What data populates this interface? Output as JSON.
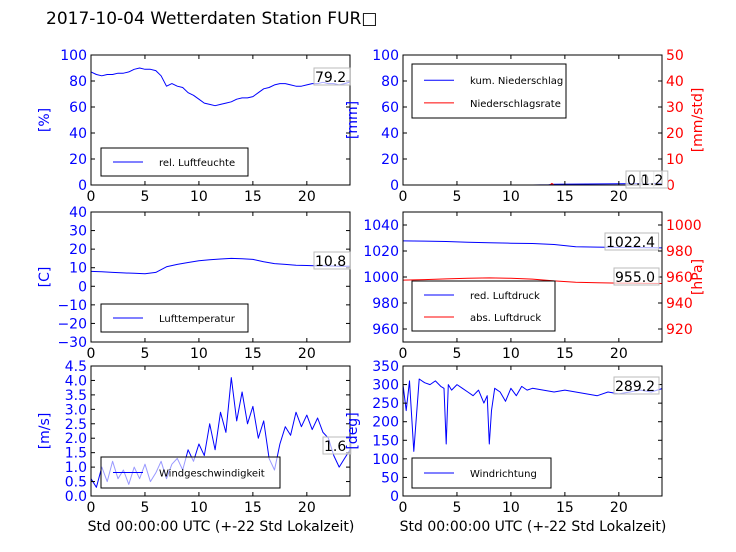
{
  "figure": {
    "title": "2017-10-04 Wetterdaten Station FUR□",
    "xlabel": "Std 00:00:00 UTC (+-22 Std Lokalzeit)",
    "colors": {
      "primary": "#0000ff",
      "secondary": "#ff0000",
      "legend_line": "#0000ff"
    }
  },
  "chart_data": [
    {
      "id": "humidity",
      "type": "line",
      "ylabel": "[%]",
      "ylim": [
        0,
        100
      ],
      "yticks": [
        0,
        20,
        40,
        60,
        80,
        100
      ],
      "xlim": [
        0,
        24
      ],
      "xticks": [
        0,
        5,
        10,
        15,
        20
      ],
      "value_label": "79.2",
      "legend_position": "lower-left",
      "series": [
        {
          "name": "rel. Luftfeuchte",
          "color": "#0000ff",
          "x": [
            0,
            0.5,
            1,
            1.5,
            2,
            2.5,
            3,
            3.5,
            4,
            4.5,
            5,
            5.5,
            6,
            6.5,
            7,
            7.5,
            8,
            8.5,
            9,
            9.5,
            10,
            10.5,
            11,
            11.5,
            12,
            12.5,
            13,
            13.5,
            14,
            14.5,
            15,
            15.5,
            16,
            16.5,
            17,
            17.5,
            18,
            18.5,
            19,
            19.5,
            20,
            20.5,
            21,
            21.5,
            22,
            22.5,
            23,
            23.5,
            24
          ],
          "y": [
            87,
            85,
            84,
            85,
            85,
            86,
            86,
            87,
            89,
            90,
            89,
            89,
            88,
            84,
            76,
            78,
            76,
            75,
            71,
            69,
            66,
            63,
            62,
            61,
            62,
            63,
            64,
            66,
            67,
            67,
            68,
            71,
            74,
            75,
            77,
            78,
            78,
            77,
            76,
            76,
            77,
            78,
            78,
            79,
            78,
            78,
            77,
            78,
            79.2
          ]
        }
      ]
    },
    {
      "id": "precipitation",
      "type": "line",
      "ylabel": "[mm]",
      "ylim": [
        0,
        100
      ],
      "yticks": [
        0,
        20,
        40,
        60,
        80,
        100
      ],
      "ylabel2": "[mm/std]",
      "ylim2": [
        0,
        50
      ],
      "yticks2": [
        0,
        10,
        20,
        30,
        40,
        50
      ],
      "xlim": [
        0,
        24
      ],
      "xticks": [
        0,
        5,
        10,
        15,
        20
      ],
      "value_labels": [
        "0.0",
        "1.2"
      ],
      "legend_position": "upper-left",
      "series": [
        {
          "name": "kum. Niederschlag",
          "color": "#0000ff",
          "axis": "left",
          "x": [
            0,
            12,
            13.5,
            14,
            24
          ],
          "y": [
            0,
            0,
            0.2,
            0.6,
            1.2
          ]
        },
        {
          "name": "Niederschlagsrate",
          "color": "#ff0000",
          "axis": "right",
          "x": [
            0,
            13.6,
            13.8,
            14,
            24
          ],
          "y": [
            0,
            0,
            0.6,
            0,
            0
          ]
        }
      ]
    },
    {
      "id": "temperature",
      "type": "line",
      "ylabel": "[C]",
      "ylim": [
        -30,
        40
      ],
      "yticks": [
        -30,
        -20,
        -10,
        0,
        10,
        20,
        30,
        40
      ],
      "xlim": [
        0,
        24
      ],
      "xticks": [
        0,
        5,
        10,
        15,
        20
      ],
      "value_label": "10.8",
      "legend_position": "lower-left",
      "series": [
        {
          "name": "Lufttemperatur",
          "color": "#0000ff",
          "x": [
            0,
            1,
            2,
            3,
            4,
            5,
            6,
            7,
            8,
            9,
            10,
            11,
            12,
            13,
            14,
            15,
            16,
            17,
            18,
            19,
            20,
            21,
            22,
            23,
            24
          ],
          "y": [
            8,
            7.8,
            7.5,
            7.2,
            7,
            6.8,
            7.5,
            10.5,
            11.8,
            12.8,
            13.8,
            14.3,
            14.7,
            15,
            14.8,
            14.5,
            13.2,
            12.2,
            11.8,
            11.3,
            11.2,
            11,
            11,
            10.8,
            10.8
          ]
        }
      ]
    },
    {
      "id": "pressure",
      "type": "line",
      "ylim": [
        950,
        1050
      ],
      "yticks": [
        960,
        980,
        1000,
        1020,
        1040
      ],
      "ylabel2": "[hPa]",
      "ylim2": [
        910,
        1010
      ],
      "yticks2": [
        920,
        940,
        960,
        980,
        1000
      ],
      "xlim": [
        0,
        24
      ],
      "xticks": [
        0,
        5,
        10,
        15,
        20
      ],
      "value_labels": [
        "1022.4",
        "955.0"
      ],
      "legend_position": "lower-left",
      "series": [
        {
          "name": "red. Luftdruck",
          "color": "#0000ff",
          "axis": "left",
          "x": [
            0,
            2,
            4,
            6,
            8,
            10,
            12,
            14,
            16,
            18,
            20,
            22,
            24
          ],
          "y": [
            1027.8,
            1027.6,
            1027.3,
            1026.8,
            1026.4,
            1026,
            1025.8,
            1025,
            1023.3,
            1023,
            1022.8,
            1022.6,
            1022.4
          ]
        },
        {
          "name": "abs. Luftdruck",
          "color": "#ff0000",
          "axis": "right",
          "x": [
            0,
            2,
            4,
            6,
            8,
            10,
            12,
            14,
            16,
            18,
            20,
            22,
            24
          ],
          "y": [
            957.6,
            958,
            958.5,
            959,
            959.3,
            959,
            958.4,
            957,
            956,
            955.6,
            955.3,
            955.2,
            955.0
          ]
        }
      ]
    },
    {
      "id": "windspeed",
      "type": "line",
      "ylabel": "[m/s]",
      "ylim": [
        0,
        4.5
      ],
      "yticks": [
        0.0,
        0.5,
        1.0,
        1.5,
        2.0,
        2.5,
        3.0,
        3.5,
        4.0,
        4.5
      ],
      "xlim": [
        0,
        24
      ],
      "xticks": [
        0,
        5,
        10,
        15,
        20
      ],
      "value_label": "1.6",
      "legend_position": "lower-left",
      "series": [
        {
          "name": "Windgeschwindigkeit",
          "color": "#0000ff",
          "x": [
            0,
            0.5,
            1,
            1.5,
            2,
            2.5,
            3,
            3.5,
            4,
            4.5,
            5,
            5.5,
            6,
            6.5,
            7,
            7.5,
            8,
            8.5,
            9,
            9.5,
            10,
            10.5,
            11,
            11.5,
            12,
            12.5,
            13,
            13.5,
            14,
            14.5,
            15,
            15.5,
            16,
            16.5,
            17,
            17.5,
            18,
            18.5,
            19,
            19.5,
            20,
            20.5,
            21,
            21.5,
            22,
            22.5,
            23,
            23.5,
            24
          ],
          "y": [
            0.6,
            0.3,
            1.0,
            0.5,
            1.2,
            0.6,
            0.9,
            0.4,
            1.0,
            0.6,
            1.1,
            0.5,
            0.8,
            1.2,
            0.6,
            1.1,
            1.3,
            0.9,
            1.6,
            1.2,
            1.8,
            1.4,
            2.5,
            1.6,
            2.9,
            2.2,
            4.1,
            2.6,
            3.6,
            2.5,
            3.1,
            2.0,
            2.6,
            1.3,
            0.9,
            1.8,
            2.4,
            2.1,
            2.9,
            2.4,
            2.8,
            2.3,
            2.7,
            2.2,
            2.0,
            1.4,
            1.0,
            1.3,
            1.6
          ]
        }
      ]
    },
    {
      "id": "winddirection",
      "type": "line",
      "ylabel": "[deg]",
      "ylim": [
        0,
        350
      ],
      "yticks": [
        0,
        50,
        100,
        150,
        200,
        250,
        300,
        350
      ],
      "xlim": [
        0,
        24
      ],
      "xticks": [
        0,
        5,
        10,
        15,
        20
      ],
      "value_label": "289.2",
      "legend_position": "lower-left",
      "series": [
        {
          "name": "Windrichtung",
          "color": "#0000ff",
          "x": [
            0,
            0.3,
            0.6,
            1,
            1.5,
            2,
            2.5,
            3,
            3.5,
            3.8,
            4,
            4.2,
            4.5,
            5,
            5.5,
            6,
            6.5,
            7,
            7.5,
            7.8,
            8,
            8.2,
            8.5,
            9,
            9.5,
            10,
            10.5,
            11,
            11.5,
            12,
            13,
            14,
            15,
            16,
            17,
            18,
            19,
            20,
            21,
            22,
            23,
            24
          ],
          "y": [
            300,
            230,
            310,
            120,
            315,
            305,
            300,
            310,
            295,
            290,
            140,
            300,
            285,
            300,
            290,
            280,
            270,
            285,
            250,
            270,
            140,
            230,
            290,
            280,
            255,
            290,
            270,
            295,
            285,
            290,
            285,
            280,
            285,
            280,
            275,
            270,
            280,
            275,
            280,
            285,
            280,
            289.2
          ]
        }
      ]
    }
  ]
}
